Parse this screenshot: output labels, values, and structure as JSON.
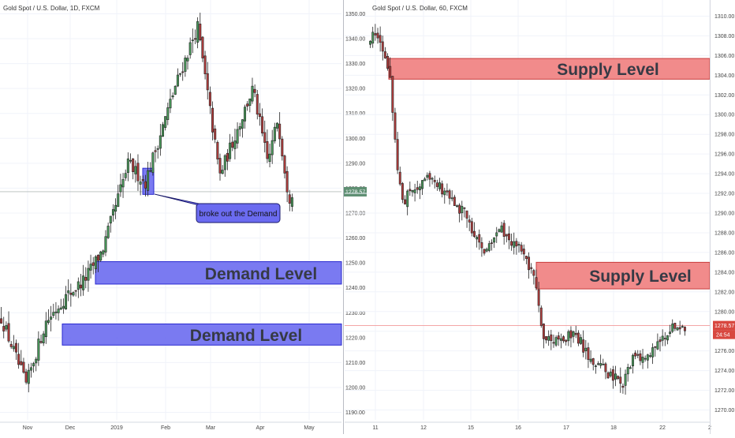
{
  "colors": {
    "up_candle": "#4a9a5b",
    "down_candle": "#b13c3c",
    "demand_fill": "#6b6bf0",
    "demand_stroke": "#2a2ad0",
    "supply_fill": "#f08585",
    "supply_stroke": "#c83c3c",
    "label_box_fill": "#6b6bf0",
    "price_tag_left": "#5e8f72",
    "price_tag_right": "#d8473f",
    "axis_text": "#444444"
  },
  "chart_data": [
    {
      "type": "candlestick",
      "title": "Gold Spot / U.S. Dollar, 1D, FXCM",
      "x_ticks": [
        "Nov",
        "Dec",
        "2019",
        "Feb",
        "Mar",
        "Apr",
        "May"
      ],
      "y_ticks": [
        "1350.00",
        "1340.00",
        "1330.00",
        "1320.00",
        "1310.00",
        "1300.00",
        "1290.00",
        "1280.00",
        "1270.00",
        "1260.00",
        "1250.00",
        "1240.00",
        "1230.00",
        "1220.00",
        "1210.00",
        "1200.00",
        "1190.00"
      ],
      "y_tick_values": [
        1350,
        1340,
        1330,
        1320,
        1310,
        1300,
        1290,
        1280,
        1270,
        1260,
        1250,
        1240,
        1230,
        1220,
        1210,
        1200,
        1190
      ],
      "ylim": [
        1187,
        1353
      ],
      "last_price": "1278.57",
      "last_price_value": 1278.57,
      "key_points": [
        {
          "date": "late Oct",
          "price": 1228
        },
        {
          "date": "Nov 12",
          "price": 1201
        },
        {
          "date": "Nov 23",
          "price": 1226
        },
        {
          "date": "Dec 3",
          "price": 1236
        },
        {
          "date": "Dec 12",
          "price": 1243
        },
        {
          "date": "Dec 20",
          "price": 1255
        },
        {
          "date": "Jan 4",
          "price": 1290
        },
        {
          "date": "Jan 20",
          "price": 1282
        },
        {
          "date": "Jan 31",
          "price": 1321
        },
        {
          "date": "Feb 20",
          "price": 1345
        },
        {
          "date": "Mar 7",
          "price": 1285
        },
        {
          "date": "Mar 26",
          "price": 1320
        },
        {
          "date": "Apr 2",
          "price": 1290
        },
        {
          "date": "Apr 10",
          "price": 1308
        },
        {
          "date": "Apr 18",
          "price": 1276
        },
        {
          "date": "Apr 19",
          "price": 1278.57
        }
      ],
      "zones": [
        {
          "kind": "demand",
          "label": "Demand Level",
          "price_low": 1241.5,
          "price_high": 1250.5,
          "start": "Dec 20"
        },
        {
          "kind": "demand",
          "label": "Demand Level",
          "price_low": 1217,
          "price_high": 1225.5,
          "start": "Nov 27"
        },
        {
          "kind": "demand-marker",
          "label": "",
          "price_low": 1277.5,
          "price_high": 1288,
          "start": "Jan 22",
          "end": "Jan 25"
        }
      ],
      "annotation": "broke out the Demand"
    },
    {
      "type": "candlestick",
      "title": "Gold Spot / U.S. Dollar, 60, FXCM",
      "x_ticks": [
        "11",
        "12",
        "15",
        "16",
        "17",
        "18",
        "22",
        "2"
      ],
      "y_ticks": [
        "1310.00",
        "1308.00",
        "1306.00",
        "1304.00",
        "1302.00",
        "1300.00",
        "1298.00",
        "1296.00",
        "1294.00",
        "1292.00",
        "1290.00",
        "1288.00",
        "1286.00",
        "1284.00",
        "1282.00",
        "1280.00",
        "1278.00",
        "1276.00",
        "1274.00",
        "1272.00",
        "1270.00"
      ],
      "y_tick_values": [
        1310,
        1308,
        1306,
        1304,
        1302,
        1300,
        1298,
        1296,
        1294,
        1292,
        1290,
        1288,
        1286,
        1284,
        1282,
        1280,
        1278,
        1276,
        1274,
        1272,
        1270
      ],
      "ylim": [
        1269,
        1311
      ],
      "last_price": "1278.57",
      "last_price_value": 1278.57,
      "countdown": "24:54",
      "key_points": [
        {
          "t": 0.0,
          "price": 1308.0
        },
        {
          "t": 0.03,
          "price": 1307.5
        },
        {
          "t": 0.06,
          "price": 1304.5
        },
        {
          "t": 0.08,
          "price": 1296.5
        },
        {
          "t": 0.1,
          "price": 1291.0
        },
        {
          "t": 0.13,
          "price": 1292.3
        },
        {
          "t": 0.19,
          "price": 1293.8
        },
        {
          "t": 0.25,
          "price": 1291.5
        },
        {
          "t": 0.3,
          "price": 1290.0
        },
        {
          "t": 0.36,
          "price": 1286.0
        },
        {
          "t": 0.41,
          "price": 1288.5
        },
        {
          "t": 0.47,
          "price": 1286.5
        },
        {
          "t": 0.52,
          "price": 1283.5
        },
        {
          "t": 0.55,
          "price": 1277.0
        },
        {
          "t": 0.6,
          "price": 1276.8
        },
        {
          "t": 0.65,
          "price": 1278.0
        },
        {
          "t": 0.7,
          "price": 1275.0
        },
        {
          "t": 0.77,
          "price": 1273.5
        },
        {
          "t": 0.8,
          "price": 1272.5
        },
        {
          "t": 0.84,
          "price": 1275.5
        },
        {
          "t": 0.88,
          "price": 1275.0
        },
        {
          "t": 0.92,
          "price": 1276.8
        },
        {
          "t": 0.96,
          "price": 1278.8
        },
        {
          "t": 1.0,
          "price": 1278.57
        }
      ],
      "zones": [
        {
          "kind": "supply",
          "label": "Supply Level",
          "price_low": 1303.6,
          "price_high": 1305.7
        },
        {
          "kind": "supply",
          "label": "Supply Level",
          "price_low": 1282.3,
          "price_high": 1285.0
        }
      ]
    }
  ]
}
